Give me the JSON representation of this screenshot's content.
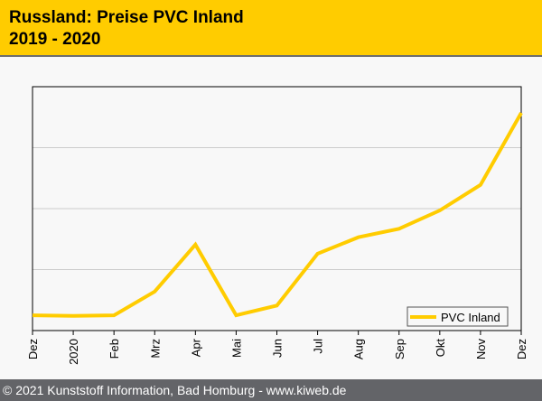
{
  "header": {
    "title": "Russland: Preise PVC Inland",
    "subtitle": "2019 - 2020"
  },
  "footer": {
    "text": "© 2021 Kunststoff Information, Bad Homburg - www.kiweb.de"
  },
  "chart_data": {
    "type": "line",
    "title": "Russland: Preise PVC Inland 2019 - 2020",
    "categories": [
      "Dez",
      "2020",
      "Feb",
      "Mrz",
      "Apr",
      "Mai",
      "Jun",
      "Jul",
      "Aug",
      "Sep",
      "Okt",
      "Nov",
      "Dez"
    ],
    "series": [
      {
        "name": "PVC Inland",
        "color": "#ffcc00",
        "values": [
          0.25,
          0.24,
          0.25,
          0.64,
          1.41,
          0.25,
          0.41,
          1.26,
          1.53,
          1.67,
          1.97,
          2.39,
          3.57
        ]
      }
    ],
    "ylim": [
      0,
      4
    ],
    "yticks": [
      1,
      2,
      3
    ],
    "grid": true,
    "legend": "bottom-right",
    "xlabel": "",
    "ylabel": ""
  }
}
